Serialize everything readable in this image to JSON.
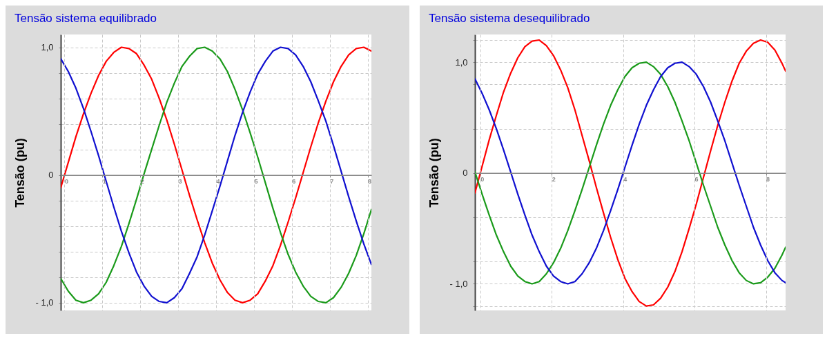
{
  "chart_data": [
    {
      "type": "line",
      "title": "Tensão sistema equilibrado",
      "ylabel": "Tensão (pu)",
      "grid": true,
      "line_style": "solid",
      "x": [
        -0.1,
        0.1,
        0.3,
        0.5,
        0.7,
        0.9,
        1.1,
        1.3,
        1.5,
        1.7,
        1.9,
        2.1,
        2.3,
        2.5,
        2.7,
        2.9,
        3.1,
        3.3,
        3.5,
        3.7,
        3.9,
        4.1,
        4.3,
        4.5,
        4.7,
        4.9,
        5.1,
        5.3,
        5.5,
        5.7,
        5.9,
        6.1,
        6.3,
        6.5,
        6.7,
        6.9,
        7.1,
        7.3,
        7.5,
        7.7,
        7.9,
        8.1
      ],
      "xlim": [
        -0.1,
        8.1
      ],
      "xticks": [
        0,
        1,
        2,
        3,
        4,
        5,
        6,
        7,
        8
      ],
      "ylim": [
        -1.06,
        1.1
      ],
      "yticks": [
        {
          "value": -1.0,
          "label": "- 1,0"
        },
        {
          "value": -0.8,
          "label": null
        },
        {
          "value": -0.6,
          "label": null
        },
        {
          "value": -0.4,
          "label": null
        },
        {
          "value": -0.2,
          "label": null
        },
        0,
        {
          "value": 0.2,
          "label": null
        },
        {
          "value": 0.4,
          "label": null
        },
        {
          "value": 0.6,
          "label": null
        },
        {
          "value": 0.8,
          "label": null
        },
        {
          "value": 1.0,
          "label": "1,0"
        }
      ],
      "series": [
        {
          "color": "#ff0000",
          "values": [
            -0.1,
            0.1,
            0.3,
            0.48,
            0.64,
            0.78,
            0.89,
            0.96,
            1.0,
            0.99,
            0.95,
            0.86,
            0.75,
            0.6,
            0.43,
            0.24,
            0.04,
            -0.16,
            -0.35,
            -0.53,
            -0.69,
            -0.82,
            -0.92,
            -0.98,
            -1.0,
            -0.98,
            -0.93,
            -0.83,
            -0.71,
            -0.55,
            -0.37,
            -0.18,
            0.02,
            0.22,
            0.41,
            0.58,
            0.73,
            0.85,
            0.94,
            0.99,
            1.0,
            0.97
          ]
        },
        {
          "color": "#1a9a1a",
          "values": [
            -0.81,
            -0.91,
            -0.98,
            -1.0,
            -0.98,
            -0.93,
            -0.84,
            -0.71,
            -0.56,
            -0.38,
            -0.19,
            0.01,
            0.2,
            0.39,
            0.57,
            0.72,
            0.85,
            0.93,
            0.99,
            1.0,
            0.97,
            0.91,
            0.81,
            0.67,
            0.51,
            0.33,
            0.14,
            -0.06,
            -0.26,
            -0.45,
            -0.62,
            -0.76,
            -0.87,
            -0.95,
            -0.99,
            -1.0,
            -0.96,
            -0.88,
            -0.77,
            -0.63,
            -0.46,
            -0.27
          ]
        },
        {
          "color": "#1010d0",
          "values": [
            0.91,
            0.81,
            0.68,
            0.52,
            0.34,
            0.15,
            -0.05,
            -0.25,
            -0.44,
            -0.61,
            -0.76,
            -0.87,
            -0.95,
            -0.99,
            -1.0,
            -0.96,
            -0.89,
            -0.77,
            -0.64,
            -0.47,
            -0.28,
            -0.09,
            0.11,
            0.31,
            0.49,
            0.65,
            0.79,
            0.89,
            0.97,
            1.0,
            0.99,
            0.94,
            0.85,
            0.73,
            0.58,
            0.42,
            0.23,
            0.03,
            -0.17,
            -0.36,
            -0.54,
            -0.7
          ]
        }
      ]
    },
    {
      "type": "line",
      "title": "Tensão sistema desequilibrado",
      "ylabel": "Tensão (pu)",
      "grid": true,
      "line_style": "solid",
      "x": [
        -0.15,
        0.05,
        0.25,
        0.45,
        0.65,
        0.85,
        1.05,
        1.25,
        1.45,
        1.65,
        1.85,
        2.05,
        2.25,
        2.45,
        2.65,
        2.85,
        3.05,
        3.25,
        3.45,
        3.65,
        3.85,
        4.05,
        4.25,
        4.45,
        4.65,
        4.85,
        5.05,
        5.25,
        5.45,
        5.65,
        5.85,
        6.05,
        6.25,
        6.45,
        6.65,
        6.85,
        7.05,
        7.25,
        7.45,
        7.65,
        7.85,
        8.05,
        8.25,
        8.45,
        8.55
      ],
      "xlim": [
        -0.15,
        8.55
      ],
      "xticks": [
        0,
        2,
        4,
        6,
        8
      ],
      "ylim": [
        -1.24,
        1.25
      ],
      "yticks": [
        {
          "value": -1.2,
          "label": null
        },
        {
          "value": -1.0,
          "label": "- 1,0"
        },
        {
          "value": -0.8,
          "label": null
        },
        {
          "value": -0.4,
          "label": null
        },
        0,
        {
          "value": 0.4,
          "label": null
        },
        {
          "value": 0.8,
          "label": null
        },
        {
          "value": 1.0,
          "label": "1,0"
        },
        {
          "value": 1.2,
          "label": null
        }
      ],
      "series": [
        {
          "color": "#ff0000",
          "values": [
            -0.18,
            0.06,
            0.3,
            0.52,
            0.73,
            0.9,
            1.04,
            1.14,
            1.19,
            1.2,
            1.15,
            1.06,
            0.93,
            0.77,
            0.57,
            0.34,
            0.11,
            -0.13,
            -0.36,
            -0.58,
            -0.78,
            -0.95,
            -1.07,
            -1.16,
            -1.2,
            -1.19,
            -1.13,
            -1.03,
            -0.89,
            -0.71,
            -0.5,
            -0.28,
            -0.04,
            0.2,
            0.43,
            0.64,
            0.83,
            0.99,
            1.1,
            1.17,
            1.2,
            1.18,
            1.11,
            0.99,
            0.92
          ]
        },
        {
          "color": "#1a9a1a",
          "values": [
            0.01,
            -0.19,
            -0.38,
            -0.56,
            -0.71,
            -0.84,
            -0.93,
            -0.98,
            -1.0,
            -0.98,
            -0.91,
            -0.81,
            -0.68,
            -0.52,
            -0.34,
            -0.15,
            0.05,
            0.25,
            0.44,
            0.61,
            0.75,
            0.87,
            0.95,
            0.99,
            1.0,
            0.96,
            0.89,
            0.78,
            0.64,
            0.47,
            0.29,
            0.09,
            -0.11,
            -0.3,
            -0.49,
            -0.65,
            -0.79,
            -0.9,
            -0.97,
            -1.0,
            -0.99,
            -0.94,
            -0.86,
            -0.74,
            -0.67
          ]
        },
        {
          "color": "#1010d0",
          "values": [
            0.85,
            0.72,
            0.57,
            0.4,
            0.21,
            0.01,
            -0.19,
            -0.38,
            -0.56,
            -0.71,
            -0.84,
            -0.93,
            -0.98,
            -1.0,
            -0.98,
            -0.91,
            -0.81,
            -0.68,
            -0.52,
            -0.34,
            -0.15,
            0.05,
            0.25,
            0.44,
            0.61,
            0.75,
            0.87,
            0.95,
            0.99,
            1.0,
            0.96,
            0.89,
            0.78,
            0.64,
            0.47,
            0.29,
            0.09,
            -0.11,
            -0.3,
            -0.49,
            -0.65,
            -0.79,
            -0.9,
            -0.97,
            -0.99
          ]
        }
      ]
    }
  ]
}
